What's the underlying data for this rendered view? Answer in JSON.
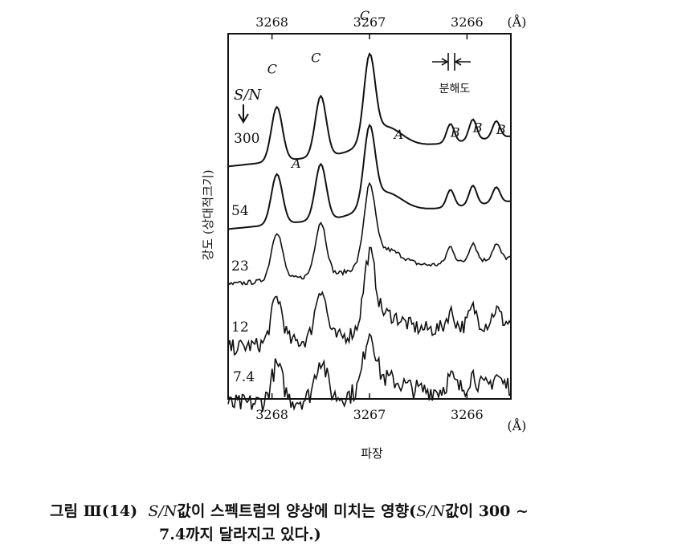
{
  "chart_data": {
    "type": "line",
    "x_unit": "Å",
    "x_ticks": [
      3268,
      3267,
      3266
    ],
    "xlim": [
      3268.45,
      3265.55
    ],
    "xlabel": "파장",
    "ylabel": "강도 (상대적크기)",
    "sn_header": "S/N",
    "resolution_label": "분해도",
    "series": [
      {
        "name": "300",
        "noise": 0.0
      },
      {
        "name": "54",
        "noise": 0.0
      },
      {
        "name": "23",
        "noise": 0.012
      },
      {
        "name": "12",
        "noise": 0.045
      },
      {
        "name": "7.4",
        "noise": 0.075
      }
    ],
    "lines": [
      {
        "label": "C",
        "x": 3267.95
      },
      {
        "label": "C",
        "x": 3267.5
      },
      {
        "label": "C",
        "x": 3267.0
      },
      {
        "label": "A",
        "x": 3267.8
      },
      {
        "label": "A",
        "x": 3266.75
      },
      {
        "label": "B",
        "x": 3266.17
      },
      {
        "label": "B",
        "x": 3265.94
      },
      {
        "label": "B",
        "x": 3265.7
      }
    ]
  },
  "caption": {
    "fig": "그림 Ⅲ(14)",
    "italic": "S/N",
    "line1_rest": "값이 스펙트럼의 양상에 미치는 영향(",
    "italic2": "S/N",
    "line1_end": "값이 300 ~",
    "line2": "7.4까지 달라지고 있다.)"
  }
}
